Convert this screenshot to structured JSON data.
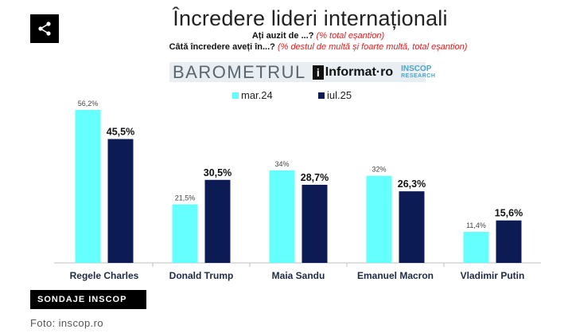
{
  "share": {
    "icon": "share-icon"
  },
  "header": {
    "title": "Încredere lideri internaționali",
    "q1_label": "Ați auzit de ...?",
    "q1_note": "(% total eșantion)",
    "q2_label": "Câtă încredere aveți în...?",
    "q2_note": "(% destul de multă și foarte multă, total eșantion)"
  },
  "brand": {
    "barometrul": "BAROMETRUL",
    "informat_i": "i",
    "informat": "Informat·ro",
    "inscop": "INSCOP",
    "inscop_sub": "RESEARCH"
  },
  "colors": {
    "series1": "#66ffff",
    "series2": "#0d1b55",
    "axis": "#bfbfbf"
  },
  "chart_data": {
    "type": "bar",
    "title": "Încredere lideri internaționali",
    "categories": [
      "Regele Charles",
      "Donald Trump",
      "Maia Sandu",
      "Emanuel Macron",
      "Vladimir Putin"
    ],
    "series": [
      {
        "name": "mar.24",
        "values": [
          56.2,
          21.5,
          34,
          32,
          11.4
        ],
        "labels": [
          "56,2%",
          "21,5%",
          "34%",
          "32%",
          "11,4%"
        ]
      },
      {
        "name": "iul.25",
        "values": [
          45.5,
          30.5,
          28.7,
          26.3,
          15.6
        ],
        "labels": [
          "45,5%",
          "30,5%",
          "28,7%",
          "26,3%",
          "15,6%"
        ]
      }
    ],
    "ylim": [
      0,
      60
    ],
    "xlabel": "",
    "ylabel": "",
    "legend": "top-center",
    "grid": false
  },
  "footer": {
    "tag": "SONDAJE INSCOP",
    "credit": "Foto: inscop.ro"
  }
}
